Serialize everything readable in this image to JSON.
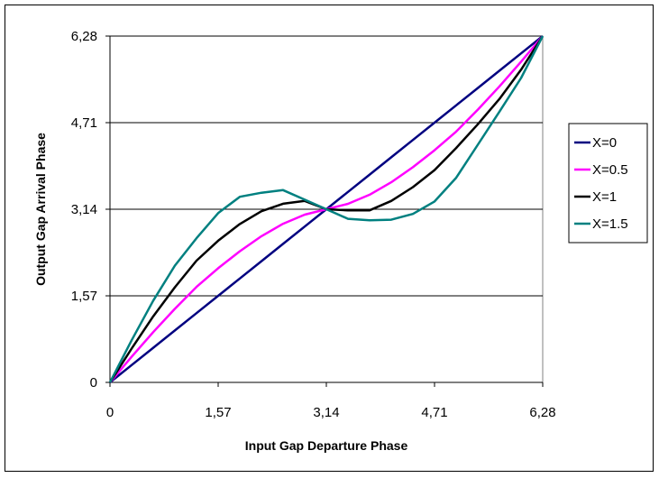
{
  "chart_data": {
    "type": "line",
    "xlabel": "Input Gap Departure Phase",
    "ylabel": "Output Gap Arrival Phase",
    "xlim": [
      0,
      6.28
    ],
    "ylim": [
      0,
      6.28
    ],
    "x_ticks": [
      0,
      1.57,
      3.14,
      4.71,
      6.28
    ],
    "y_ticks": [
      0,
      1.57,
      3.14,
      4.71,
      6.28
    ],
    "x_tick_labels": [
      "0",
      "1,57",
      "3,14",
      "4,71",
      "6,28"
    ],
    "y_tick_labels": [
      "0",
      "1,57",
      "3,14",
      "4,71",
      "6,28"
    ],
    "grid": "horizontal",
    "legend": "right",
    "x": [
      0,
      0.314,
      0.628,
      0.942,
      1.256,
      1.57,
      1.884,
      2.198,
      2.512,
      2.826,
      3.14,
      3.454,
      3.768,
      4.082,
      4.396,
      4.71,
      5.024,
      5.338,
      5.652,
      5.966,
      6.28
    ],
    "series": [
      {
        "name": "X=0",
        "color": "#000080",
        "values": [
          0,
          0.314,
          0.628,
          0.942,
          1.256,
          1.57,
          1.884,
          2.198,
          2.512,
          2.826,
          3.14,
          3.454,
          3.768,
          4.082,
          4.396,
          4.71,
          5.024,
          5.338,
          5.652,
          5.966,
          6.28
        ]
      },
      {
        "name": "X=0.5",
        "color": "#ff00ff",
        "values": [
          0,
          0.464,
          0.913,
          1.334,
          1.732,
          2.07,
          2.378,
          2.651,
          2.876,
          3.042,
          3.14,
          3.238,
          3.404,
          3.629,
          3.902,
          4.21,
          4.548,
          4.946,
          5.367,
          5.816,
          6.28
        ]
      },
      {
        "name": "X=1",
        "color": "#000000",
        "values": [
          0,
          0.614,
          1.198,
          1.726,
          2.207,
          2.57,
          2.872,
          3.104,
          3.24,
          3.29,
          3.14,
          3.12,
          3.12,
          3.29,
          3.54,
          3.85,
          4.25,
          4.68,
          5.14,
          5.67,
          6.28
        ]
      },
      {
        "name": "X=1.5",
        "color": "#008080",
        "values": [
          0,
          0.764,
          1.483,
          2.118,
          2.615,
          3.07,
          3.366,
          3.44,
          3.486,
          3.314,
          3.14,
          2.966,
          2.94,
          2.95,
          3.055,
          3.28,
          3.71,
          4.31,
          4.91,
          5.52,
          6.28
        ]
      }
    ]
  }
}
